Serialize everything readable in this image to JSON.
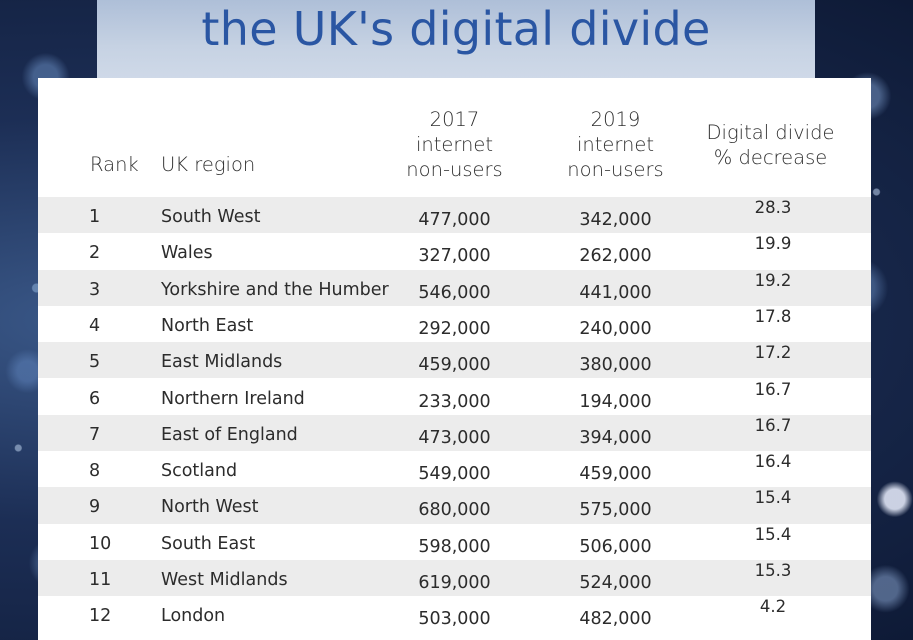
{
  "title": "the UK's digital divide",
  "table": {
    "headers": {
      "rank": "Rank",
      "region": "UK region",
      "y2017": [
        "2017",
        "internet",
        "non-users"
      ],
      "y2019": [
        "2019",
        "internet",
        "non-users"
      ],
      "decrease": [
        "Digital divide",
        "% decrease"
      ]
    },
    "rows": [
      {
        "rank": "1",
        "region": "South West",
        "y2017": "477,000",
        "y2019": "342,000",
        "decrease": "28.3"
      },
      {
        "rank": "2",
        "region": "Wales",
        "y2017": "327,000",
        "y2019": "262,000",
        "decrease": "19.9"
      },
      {
        "rank": "3",
        "region": "Yorkshire and the Humber",
        "y2017": "546,000",
        "y2019": "441,000",
        "decrease": "19.2"
      },
      {
        "rank": "4",
        "region": "North East",
        "y2017": "292,000",
        "y2019": "240,000",
        "decrease": "17.8"
      },
      {
        "rank": "5",
        "region": "East Midlands",
        "y2017": "459,000",
        "y2019": "380,000",
        "decrease": "17.2"
      },
      {
        "rank": "6",
        "region": "Northern Ireland",
        "y2017": "233,000",
        "y2019": "194,000",
        "decrease": "16.7"
      },
      {
        "rank": "7",
        "region": "East of England",
        "y2017": "473,000",
        "y2019": "394,000",
        "decrease": "16.7"
      },
      {
        "rank": "8",
        "region": "Scotland",
        "y2017": "549,000",
        "y2019": "459,000",
        "decrease": "16.4"
      },
      {
        "rank": "9",
        "region": "North West",
        "y2017": "680,000",
        "y2019": "575,000",
        "decrease": "15.4"
      },
      {
        "rank": "10",
        "region": "South East",
        "y2017": "598,000",
        "y2019": "506,000",
        "decrease": "15.4"
      },
      {
        "rank": "11",
        "region": "West Midlands",
        "y2017": "619,000",
        "y2019": "524,000",
        "decrease": "15.3"
      },
      {
        "rank": "12",
        "region": "London",
        "y2017": "503,000",
        "y2019": "482,000",
        "decrease": "4.2"
      }
    ]
  },
  "colors": {
    "title": "#2a56a3",
    "row_alt": "#ececec",
    "card": "#ffffff"
  }
}
